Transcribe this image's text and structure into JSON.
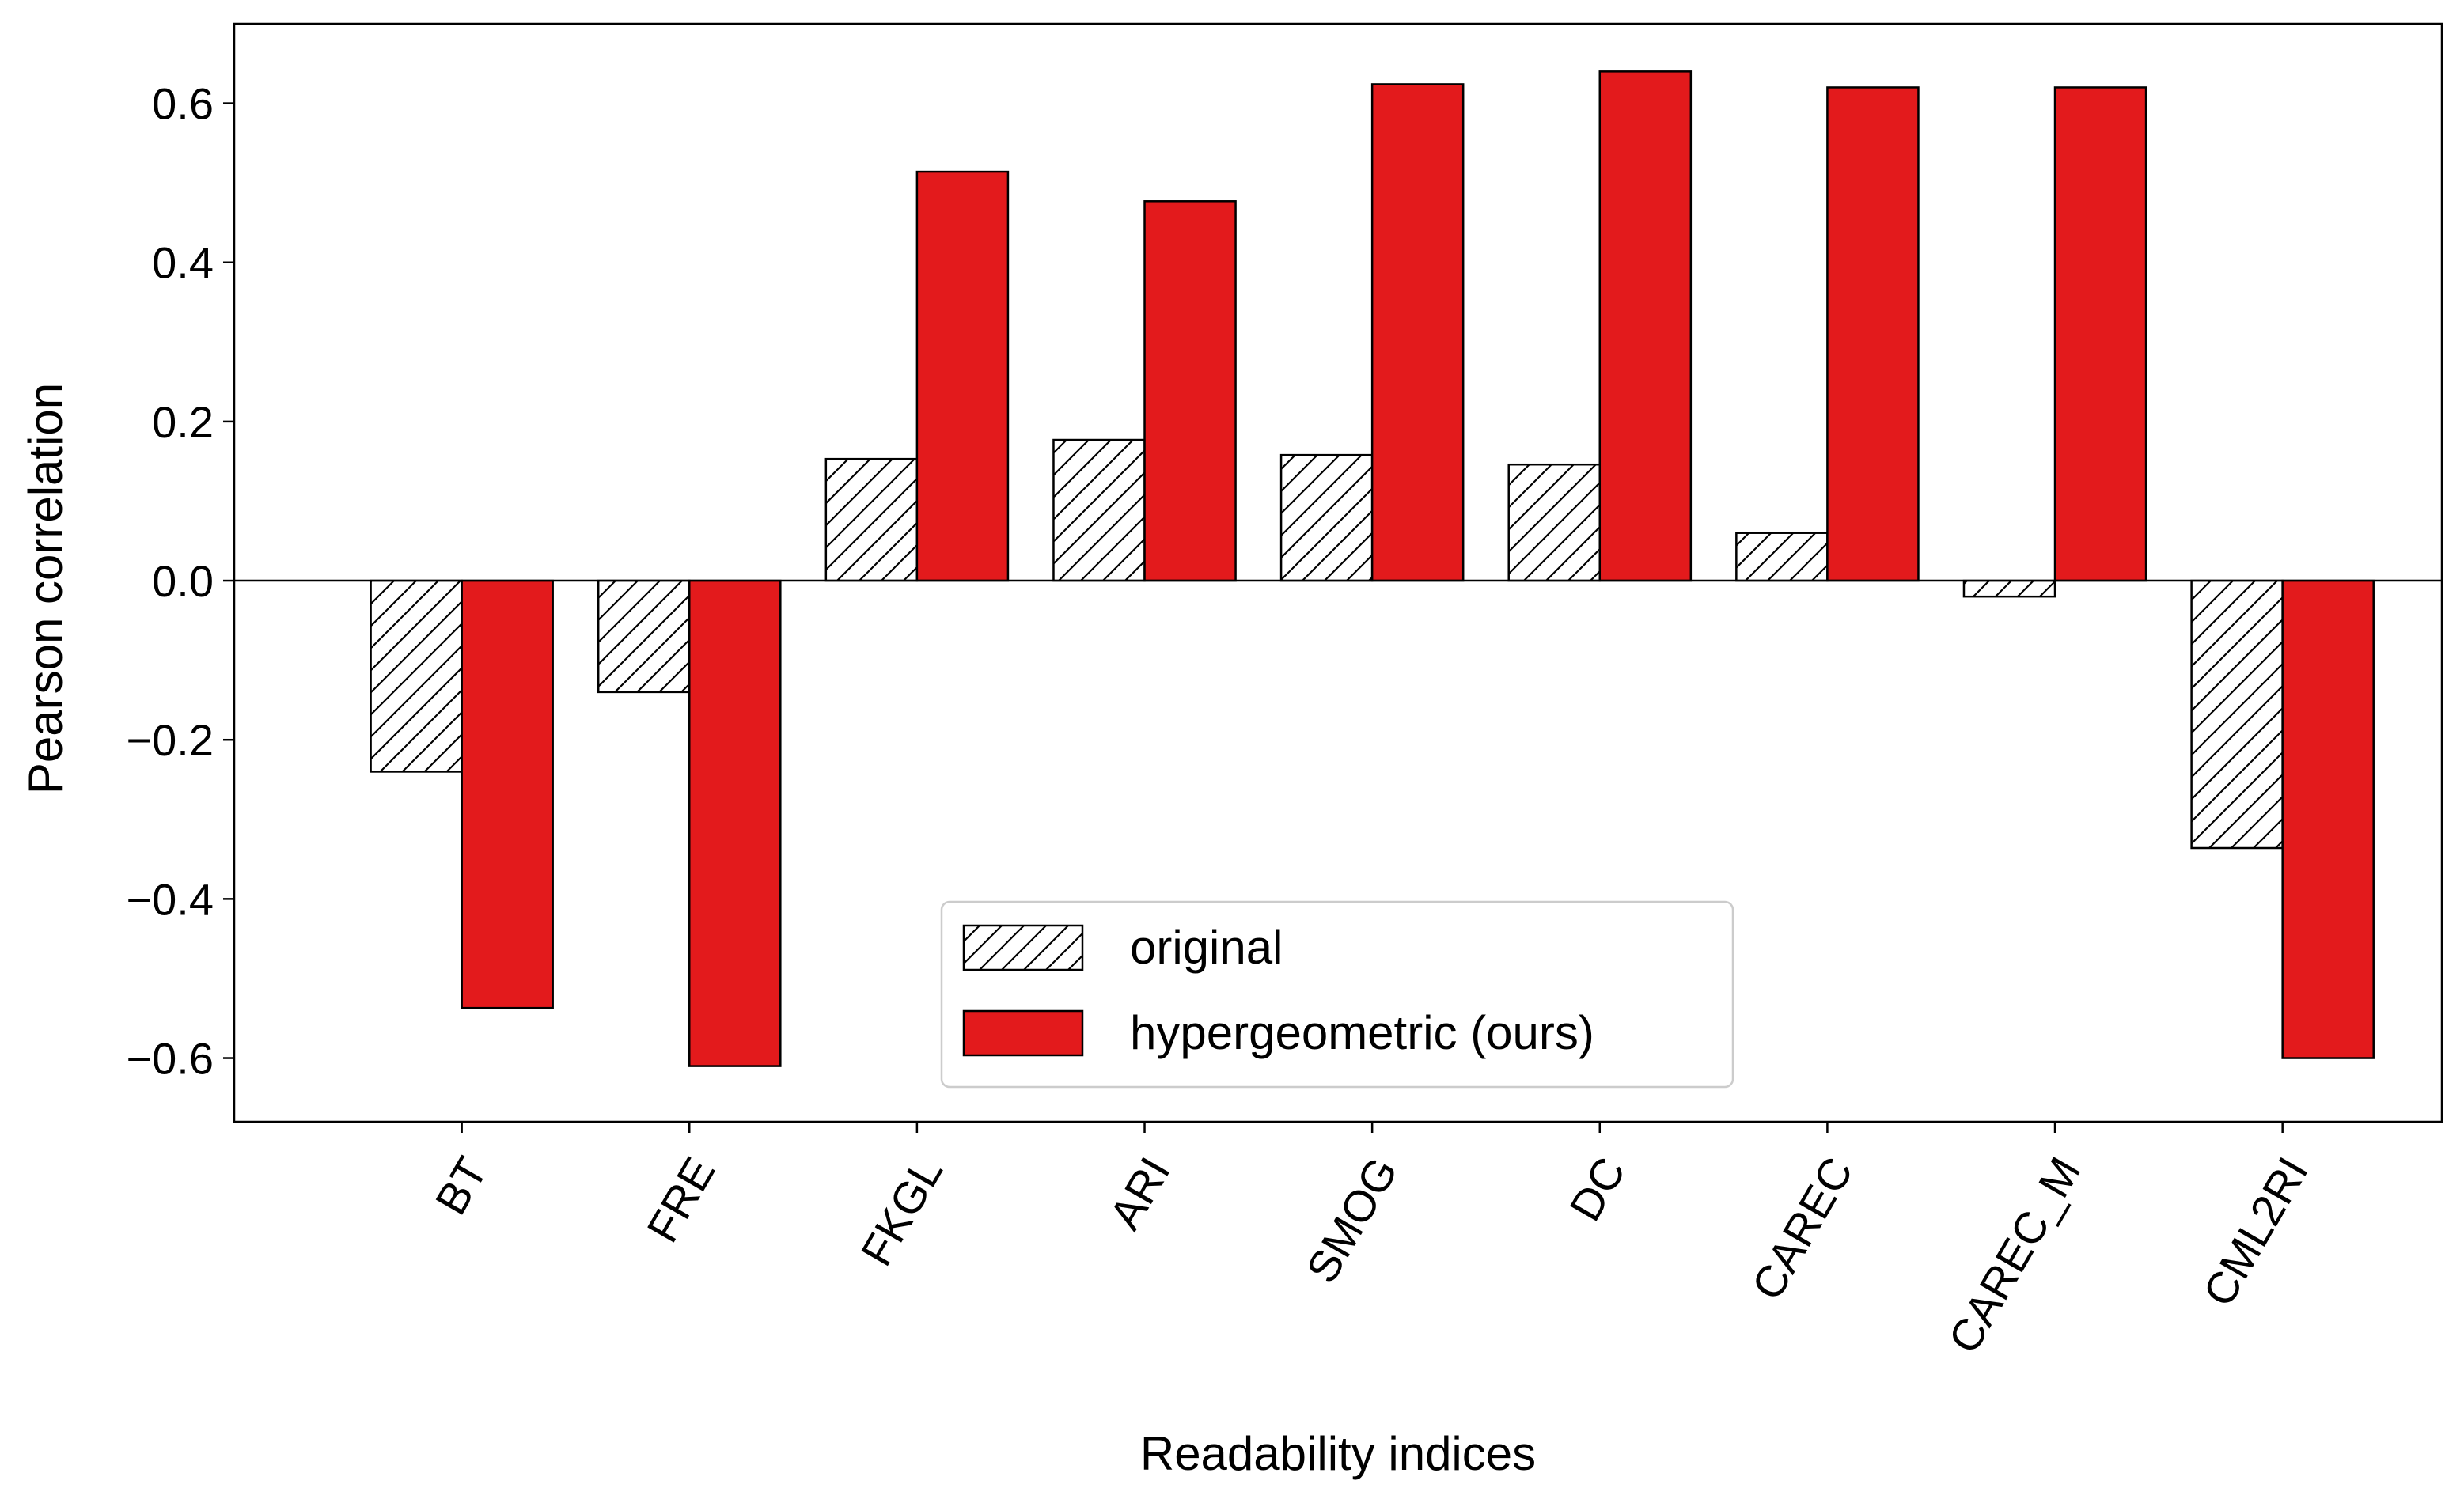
{
  "chart_data": {
    "type": "bar",
    "title": "",
    "xlabel": "Readability indices",
    "ylabel": "Pearson correlation",
    "categories": [
      "BT",
      "FRE",
      "FKGL",
      "ARI",
      "SMOG",
      "DC",
      "CAREC",
      "CAREC_M",
      "CML2RI"
    ],
    "series": [
      {
        "name": "original",
        "style": "hatched",
        "fill": "#ffffff",
        "values": [
          -0.24,
          -0.14,
          0.153,
          0.177,
          0.158,
          0.146,
          0.06,
          -0.02,
          -0.336
        ]
      },
      {
        "name": "hypergeometric (ours)",
        "style": "solid",
        "fill": "#e31a1c",
        "values": [
          -0.537,
          -0.61,
          0.514,
          0.477,
          0.624,
          0.64,
          0.62,
          0.62,
          -0.6
        ]
      }
    ],
    "ylim": [
      -0.68,
      0.7
    ],
    "yticks": [
      -0.6,
      -0.4,
      -0.2,
      0.0,
      0.2,
      0.4,
      0.6
    ],
    "ytick_labels": [
      "−0.6",
      "−0.4",
      "−0.2",
      "0.0",
      "0.2",
      "0.4",
      "0.6"
    ],
    "grid": false,
    "zero_line": true,
    "legend_position": "lower center",
    "x_tick_rotation": 60
  }
}
